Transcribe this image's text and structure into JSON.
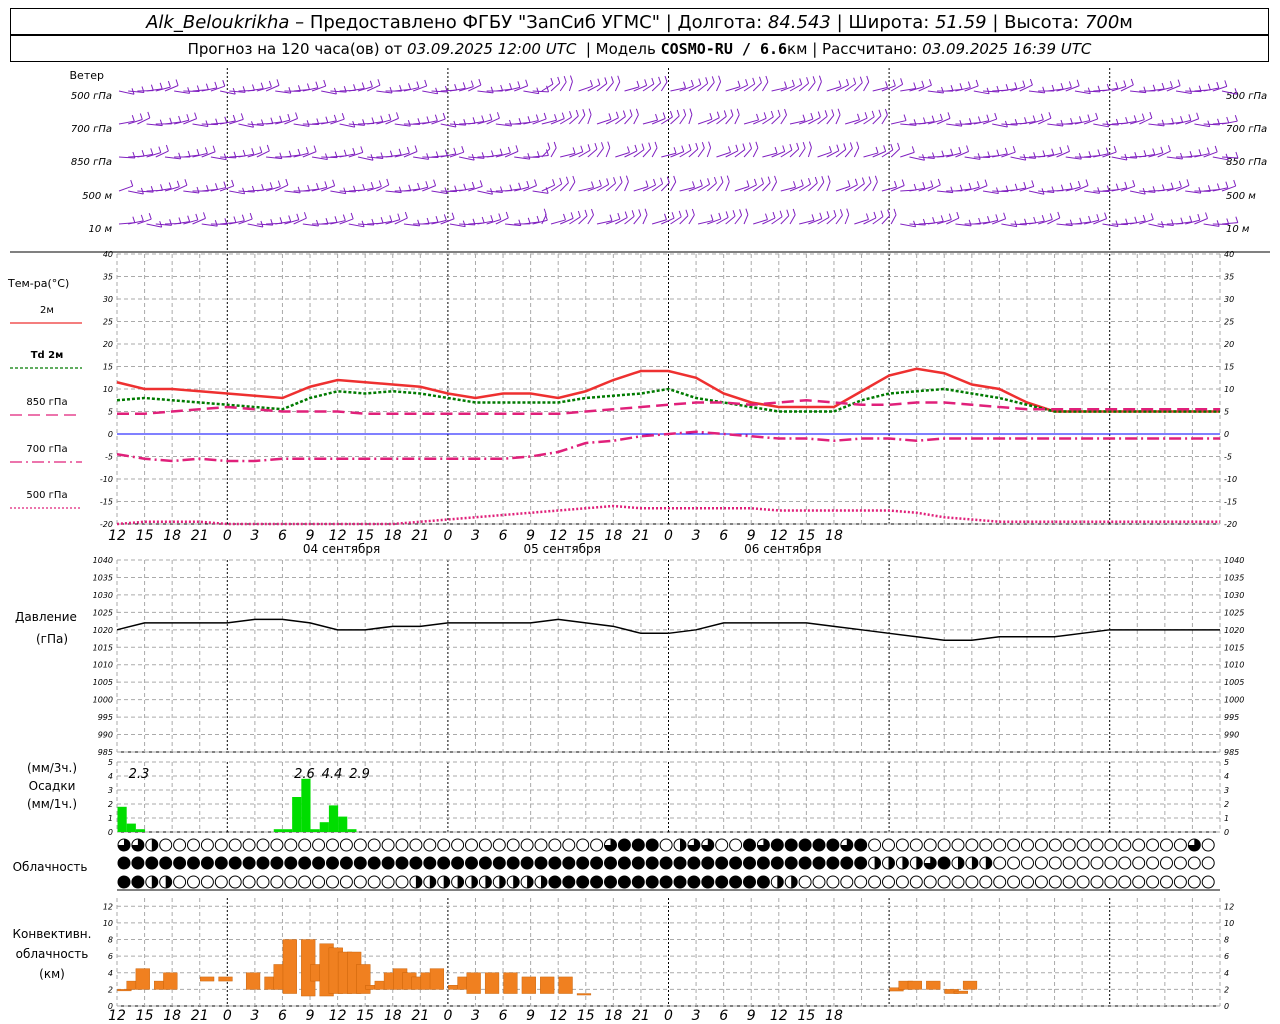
{
  "header": {
    "station": "Alk_Beloukrikha",
    "provider": "– Предоставлено ФГБУ \"ЗапСиб УГМС\"",
    "lon_label": "Долгота:",
    "lon": "84.543",
    "lat_label": "Широта:",
    "lat": "51.59",
    "alt_label": "Высота:",
    "alt": "700",
    "alt_unit": "м",
    "forecast_label": "Прогноз на 120 часа(ов) от",
    "forecast_from": "03.09.2025 12:00 UTC",
    "model_label": "Модель",
    "model": "COSMO-RU / 6.6",
    "model_unit": "км",
    "computed_label": "Рассчитано:",
    "computed": "03.09.2025 16:39 UTC"
  },
  "labels": {
    "wind": "Ветер",
    "wind_levels": [
      "500 гПа",
      "700 гПа",
      "850 гПа",
      "500 м",
      "10 м"
    ],
    "temp": "Тем-ра(°С)",
    "temp_legend": [
      "2м",
      "Td 2м",
      "850 гПа",
      "700 гПа",
      "500 гПа"
    ],
    "pressure": "Давление",
    "pressure_unit": "(гПа)",
    "precip_unit_top": "(мм/3ч.)",
    "precip": "Осадки",
    "precip_unit_bottom": "(мм/1ч.)",
    "cloud": "Облачность",
    "conv1": "Конвективн.",
    "conv2": "облачность",
    "conv3": "(км)"
  },
  "colors": {
    "t2m": "#ee3030",
    "td2m": "#007a00",
    "t850": "#e0207a",
    "t700": "#e0207a",
    "t500": "#e0207a",
    "wind": "#8020c0",
    "precip": "#00dd00",
    "conv": "#f08020",
    "zero": "#0000ff"
  },
  "chart_data": [
    {
      "type": "line",
      "name": "temperature",
      "x_hours": [
        0,
        3,
        6,
        9,
        12,
        15,
        18,
        21,
        24,
        27,
        30,
        33,
        36,
        39,
        42,
        45,
        48,
        51,
        54,
        57,
        60,
        63,
        66,
        69,
        72,
        75,
        78,
        81,
        84,
        87,
        90,
        93,
        96,
        99,
        102,
        105,
        108,
        111,
        114,
        117,
        120
      ],
      "ylim": [
        -20,
        40
      ],
      "yticks": [
        -20,
        -15,
        -10,
        -5,
        0,
        5,
        10,
        15,
        20,
        25,
        30,
        35,
        40
      ],
      "series": [
        {
          "name": "2м",
          "values": [
            11.5,
            10,
            10,
            9.5,
            9,
            8.5,
            8,
            10.5,
            12,
            11.5,
            11,
            10.5,
            9,
            8,
            9,
            9,
            8,
            9.5,
            12,
            14,
            14,
            12.5,
            9,
            7,
            6,
            6,
            6,
            9.5,
            13,
            14.5,
            13.5,
            11,
            10,
            7,
            5,
            5,
            5,
            5,
            5,
            5,
            5
          ]
        },
        {
          "name": "Td 2м",
          "values": [
            7.5,
            8,
            7.5,
            7,
            6.5,
            6,
            5.5,
            8,
            9.5,
            9,
            9.5,
            9,
            8,
            7,
            7,
            7,
            7,
            8,
            8.5,
            9,
            10,
            8,
            7,
            6,
            5,
            5,
            5,
            7.5,
            9,
            9.5,
            10,
            9,
            8,
            6.5,
            5,
            5,
            5,
            5,
            5,
            5,
            5
          ]
        },
        {
          "name": "850 гПа",
          "values": [
            4.5,
            4.5,
            5,
            5.5,
            6,
            5.5,
            5,
            5,
            5,
            4.5,
            4.5,
            4.5,
            4.5,
            4.5,
            4.5,
            4.5,
            4.5,
            5,
            5.5,
            6,
            6.5,
            7,
            7,
            6.5,
            7,
            7.5,
            7,
            6.5,
            6.5,
            7,
            7,
            6.5,
            6,
            5.5,
            5.5,
            5.5,
            5.5,
            5.5,
            5.5,
            5.5,
            5.5
          ]
        },
        {
          "name": "700 гПа",
          "values": [
            -4.5,
            -5.5,
            -6,
            -5.5,
            -6,
            -6,
            -5.5,
            -5.5,
            -5.5,
            -5.5,
            -5.5,
            -5.5,
            -5.5,
            -5.5,
            -5.5,
            -5,
            -4,
            -2,
            -1.5,
            -0.5,
            0,
            0.5,
            0,
            -0.5,
            -1,
            -1,
            -1.5,
            -1,
            -1,
            -1.5,
            -1,
            -1,
            -1,
            -1,
            -1,
            -1,
            -1,
            -1,
            -1,
            -1,
            -1
          ]
        },
        {
          "name": "500 гПа",
          "values": [
            -20,
            -19.5,
            -19.5,
            -19.5,
            -20,
            -20,
            -20,
            -20,
            -20,
            -20,
            -20,
            -19.5,
            -19,
            -18.5,
            -18,
            -17.5,
            -17,
            -16.5,
            -16,
            -16.5,
            -16.5,
            -16.5,
            -16.5,
            -16.5,
            -17,
            -17,
            -17,
            -17,
            -17,
            -17.5,
            -18.5,
            -19,
            -19.5,
            -19.5,
            -19.5,
            -19.5,
            -19.5,
            -19.5,
            -19.5,
            -19.5,
            -19.5
          ]
        }
      ]
    },
    {
      "type": "line",
      "name": "pressure",
      "x_hours": [
        0,
        3,
        6,
        9,
        12,
        15,
        18,
        21,
        24,
        27,
        30,
        33,
        36,
        39,
        42,
        45,
        48,
        51,
        54,
        57,
        60,
        63,
        66,
        69,
        72,
        75,
        78,
        81,
        84,
        87,
        90,
        93,
        96,
        99,
        102,
        105,
        108,
        111,
        114,
        117,
        120
      ],
      "ylim": [
        985,
        1040
      ],
      "yticks": [
        985,
        990,
        995,
        1000,
        1005,
        1010,
        1015,
        1020,
        1025,
        1030,
        1035,
        1040
      ],
      "series": [
        {
          "name": "Давление",
          "values": [
            1020,
            1022,
            1022,
            1022,
            1022,
            1023,
            1023,
            1022,
            1020,
            1020,
            1021,
            1021,
            1022,
            1022,
            1022,
            1022,
            1023,
            1022,
            1021,
            1019,
            1019,
            1020,
            1022,
            1022,
            1022,
            1022,
            1021,
            1020,
            1019,
            1018,
            1017,
            1017,
            1018,
            1018,
            1018,
            1019,
            1020,
            1020,
            1020,
            1020,
            1020
          ]
        }
      ]
    },
    {
      "type": "bar",
      "name": "precipitation",
      "ylim": [
        0,
        5
      ],
      "yticks": [
        0,
        1,
        2,
        3,
        4,
        5
      ],
      "x_hours": [
        0,
        1,
        2,
        3,
        4,
        5,
        6,
        7,
        8,
        9,
        10,
        11,
        12,
        13,
        14,
        15,
        16,
        17,
        18,
        19,
        20,
        21,
        22,
        23
      ],
      "values_hourly": [
        {
          "h": 0,
          "v": 1.8
        },
        {
          "h": 1,
          "v": 0.6
        },
        {
          "h": 2,
          "v": 0.2
        },
        {
          "h": 17,
          "v": 0.2
        },
        {
          "h": 18,
          "v": 0.2
        },
        {
          "h": 19,
          "v": 2.5
        },
        {
          "h": 20,
          "v": 3.8
        },
        {
          "h": 21,
          "v": 0.2
        },
        {
          "h": 22,
          "v": 0.7
        },
        {
          "h": 23,
          "v": 1.9
        },
        {
          "h": 24,
          "v": 1.1
        },
        {
          "h": 25,
          "v": 0.2
        }
      ],
      "labels_3h": [
        {
          "h": 0,
          "text": "2.3"
        },
        {
          "h": 18,
          "text": "2.6"
        },
        {
          "h": 21,
          "text": "4.4"
        },
        {
          "h": 24,
          "text": "2.9"
        }
      ]
    },
    {
      "type": "bar",
      "name": "convective_cloud",
      "ylim": [
        0,
        13
      ],
      "yticks": [
        0,
        2,
        4,
        6,
        8,
        10,
        12
      ],
      "bars": [
        {
          "h": 0,
          "lo": 2,
          "hi": 2
        },
        {
          "h": 1,
          "lo": 2,
          "hi": 3
        },
        {
          "h": 2,
          "lo": 2,
          "hi": 4.5
        },
        {
          "h": 4,
          "lo": 2,
          "hi": 3
        },
        {
          "h": 5,
          "lo": 2,
          "hi": 4
        },
        {
          "h": 9,
          "lo": 3,
          "hi": 3.5
        },
        {
          "h": 11,
          "lo": 3,
          "hi": 3.5
        },
        {
          "h": 14,
          "lo": 2,
          "hi": 4
        },
        {
          "h": 16,
          "lo": 2,
          "hi": 3.5
        },
        {
          "h": 17,
          "lo": 2,
          "hi": 5
        },
        {
          "h": 18,
          "lo": 1.5,
          "hi": 8
        },
        {
          "h": 20,
          "lo": 1.2,
          "hi": 8
        },
        {
          "h": 21,
          "lo": 3,
          "hi": 5
        },
        {
          "h": 22,
          "lo": 1.2,
          "hi": 7.5
        },
        {
          "h": 23,
          "lo": 1.5,
          "hi": 7
        },
        {
          "h": 24,
          "lo": 1.5,
          "hi": 6.5
        },
        {
          "h": 25,
          "lo": 1.5,
          "hi": 6.5
        },
        {
          "h": 26,
          "lo": 1.5,
          "hi": 5
        },
        {
          "h": 27,
          "lo": 2,
          "hi": 2.5
        },
        {
          "h": 28,
          "lo": 2,
          "hi": 3
        },
        {
          "h": 29,
          "lo": 2,
          "hi": 4
        },
        {
          "h": 30,
          "lo": 2,
          "hi": 4.5
        },
        {
          "h": 31,
          "lo": 2,
          "hi": 4
        },
        {
          "h": 32,
          "lo": 2,
          "hi": 3.5
        },
        {
          "h": 33,
          "lo": 2,
          "hi": 4
        },
        {
          "h": 34,
          "lo": 2,
          "hi": 4.5
        },
        {
          "h": 36,
          "lo": 2,
          "hi": 2.5
        },
        {
          "h": 37,
          "lo": 2,
          "hi": 3.5
        },
        {
          "h": 38,
          "lo": 1.5,
          "hi": 4
        },
        {
          "h": 40,
          "lo": 1.5,
          "hi": 4
        },
        {
          "h": 42,
          "lo": 1.5,
          "hi": 4
        },
        {
          "h": 44,
          "lo": 1.5,
          "hi": 3.5
        },
        {
          "h": 46,
          "lo": 1.5,
          "hi": 3.5
        },
        {
          "h": 48,
          "lo": 1.5,
          "hi": 3.5
        },
        {
          "h": 50,
          "lo": 1.5,
          "hi": 1.5
        },
        {
          "h": 84,
          "lo": 1.8,
          "hi": 2.2
        },
        {
          "h": 85,
          "lo": 2,
          "hi": 3
        },
        {
          "h": 86,
          "lo": 2,
          "hi": 3
        },
        {
          "h": 88,
          "lo": 2,
          "hi": 3
        },
        {
          "h": 90,
          "lo": 1.5,
          "hi": 2
        },
        {
          "h": 91,
          "lo": 1.5,
          "hi": 1.8
        },
        {
          "h": 92,
          "lo": 2,
          "hi": 3
        }
      ]
    }
  ],
  "x_axis": {
    "tick_labels": [
      "12",
      "15",
      "18",
      "21",
      "0",
      "3",
      "6",
      "9",
      "12",
      "15",
      "18",
      "21",
      "0",
      "3",
      "6",
      "9",
      "12",
      "15",
      "18",
      "21",
      "0",
      "3",
      "6",
      "9",
      "12",
      "15",
      "18"
    ],
    "dates": [
      "04 сентября",
      "05 сентября",
      "06 сентября"
    ]
  },
  "cloud_rows": {
    "top": "ddbaaaaaaaaaaaaaaaaaaaaaaaaaaaaaaaadcccabddaacdcccccdcaaaaaaaaaaaaaaaaaaaaaaadacccdcdbabbaaaaaaaaaaaaaaaaaaaaaaaaaaaaaa",
    "middle": "ccccccccccccccccccccccccccccccccccccccccccccccccccccccbbbbdcbbbaaaaaaaaaaaaaaaaaaadcdcccccccccccccccccaaaaaaaaaaaaaaaaaa",
    "bottom": "ccbbaaaaaaaaaaaaaaaaabbbbbbbbbbccccccccccccccccbbaaaaaaaaaaaaaaaaaaaaaaaaaaaaaaaaaaaaaaaaaaaaaaaaaaaaaaaaaaaaaaaaaaadcbbb"
  }
}
